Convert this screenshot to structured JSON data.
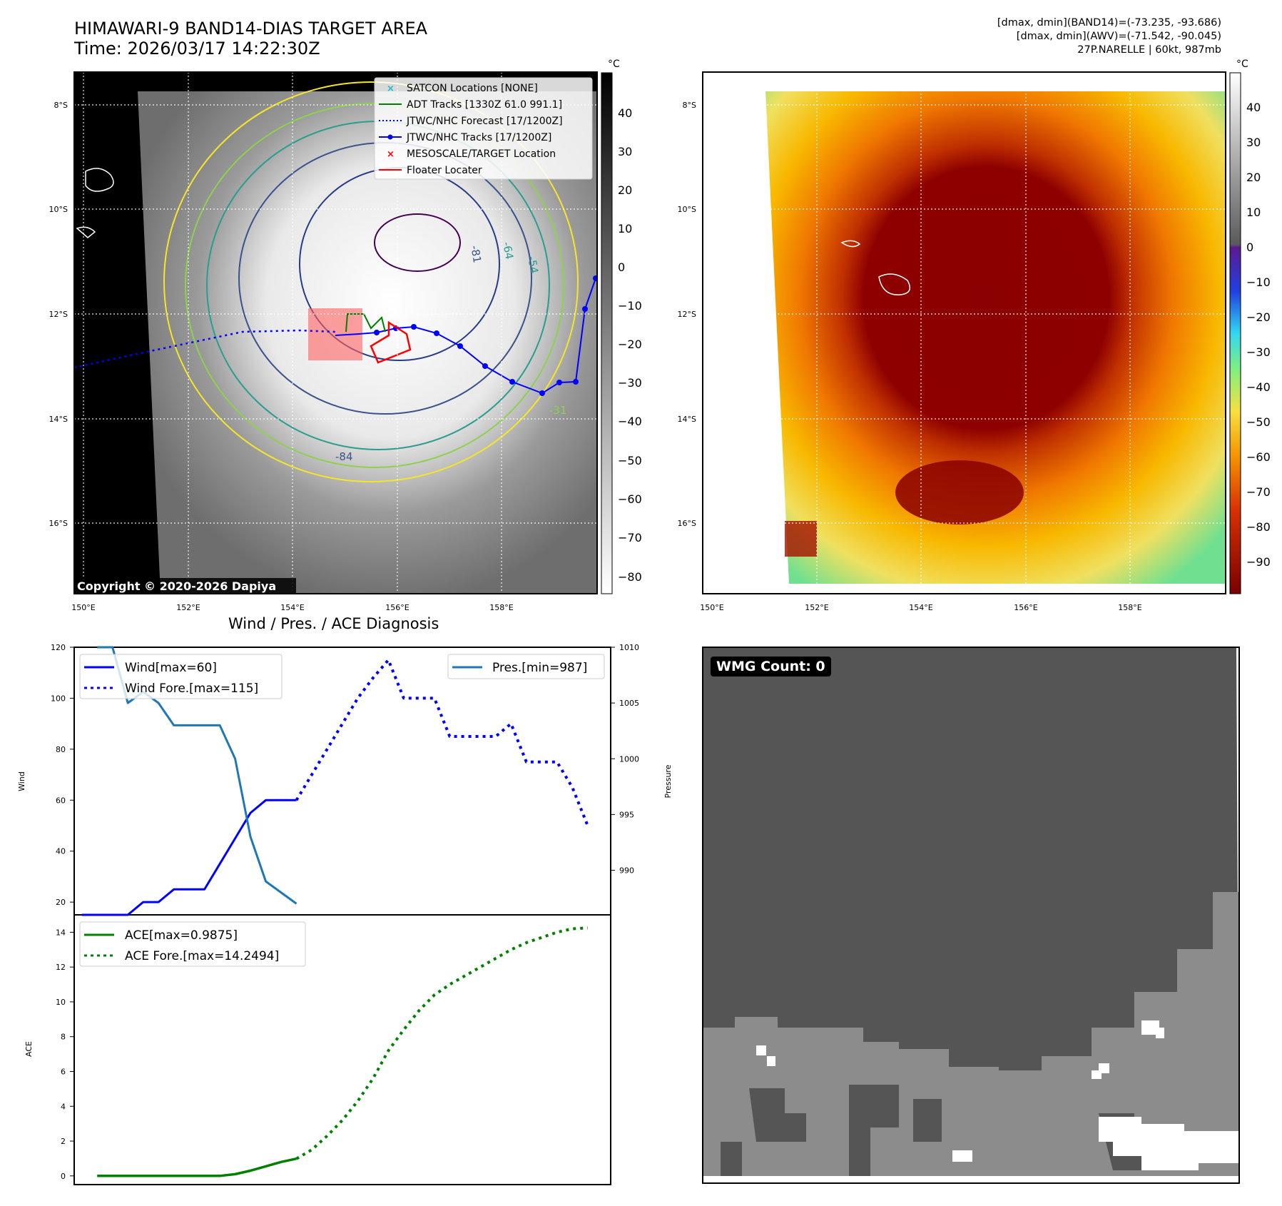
{
  "header": {
    "title_line1": "HIMAWARI-9 BAND14-DIAS TARGET AREA",
    "title_line2": "Time: 2026/03/17 14:22:30Z",
    "info_line1": "[dmax, dmin](BAND14)=(-73.235, -93.686)",
    "info_line2": "[dmax, dmin](AWV)=(-71.542, -90.045)",
    "info_line3": "27P.NARELLE | 60kt, 987mb"
  },
  "map": {
    "lat_labels": [
      "8°S",
      "10°S",
      "12°S",
      "14°S",
      "16°S"
    ],
    "lon_labels": [
      "150°E",
      "152°E",
      "154°E",
      "156°E",
      "158°E"
    ],
    "copyright": "Copyright © 2020-2026 Dapiya",
    "legend": [
      {
        "label": "SATCON Locations [NONE]",
        "color": "#17becf",
        "marker": "x"
      },
      {
        "label": "ADT Tracks [1330Z 61.0 991.1]",
        "color": "#008000",
        "marker": "line"
      },
      {
        "label": "JTWC/NHC Forecast [17/1200Z]",
        "color": "#0000ff",
        "marker": "dotted"
      },
      {
        "label": "JTWC/NHC Tracks [17/1200Z]",
        "color": "#0000ff",
        "marker": "line-dot"
      },
      {
        "label": "MESOSCALE/TARGET Location",
        "color": "#ff0000",
        "marker": "x"
      },
      {
        "label": "Floater Locater",
        "color": "#ff0000",
        "marker": "line"
      }
    ],
    "contour_labels": [
      "-31",
      "-54",
      "-64",
      "-81",
      "-84"
    ],
    "colorbar1": {
      "unit": "°C",
      "ticks": [
        "40",
        "30",
        "20",
        "10",
        "0",
        "−10",
        "−20",
        "−30",
        "−40",
        "−50",
        "−60",
        "−70",
        "−80"
      ]
    },
    "colorbar2": {
      "unit": "°C",
      "ticks": [
        "40",
        "30",
        "20",
        "10",
        "0",
        "−10",
        "−20",
        "−30",
        "−40",
        "−50",
        "−60",
        "−70",
        "−80",
        "−90"
      ]
    }
  },
  "diagnosis": {
    "title": "Wind / Pres. / ACE Diagnosis",
    "wind_ylabel": "Wind",
    "pres_ylabel": "Pressure",
    "ace_ylabel": "ACE",
    "wind_ticks": [
      "20",
      "40",
      "60",
      "80",
      "100",
      "120"
    ],
    "pres_ticks": [
      "990",
      "995",
      "1000",
      "1005",
      "1010"
    ],
    "ace_ticks": [
      "0",
      "2",
      "4",
      "6",
      "8",
      "10",
      "12",
      "14"
    ],
    "legend_wind": "Wind[max=60]",
    "legend_wind_fore": "Wind Fore.[max=115]",
    "legend_pres": "Pres.[min=987]",
    "legend_ace": "ACE[max=0.9875]",
    "legend_ace_fore": "ACE Fore.[max=14.2494]"
  },
  "wmg": {
    "label": "WMG Count: 0"
  },
  "chart_data": [
    {
      "type": "line",
      "title": "Wind / Pres. / ACE Diagnosis",
      "ylabel": "Wind",
      "ylim": [
        15,
        120
      ],
      "x": [
        0,
        1,
        2,
        3,
        4,
        5,
        6,
        7,
        8,
        9,
        10,
        11,
        12,
        13,
        14,
        15,
        16,
        17,
        18,
        19,
        20,
        21,
        22,
        23,
        24,
        25,
        26,
        27,
        28,
        29,
        30,
        31,
        32,
        33
      ],
      "series": [
        {
          "name": "Wind[max=60]",
          "color": "#0000ff",
          "style": "solid",
          "x": [
            0,
            1,
            2,
            3,
            4,
            5,
            6,
            7,
            8,
            9,
            10,
            11,
            12,
            13,
            14
          ],
          "values": [
            15,
            15,
            15,
            15,
            20,
            20,
            25,
            25,
            25,
            35,
            45,
            55,
            60,
            60,
            60
          ]
        },
        {
          "name": "Wind Fore.[max=115]",
          "color": "#0000ff",
          "style": "dotted",
          "x": [
            14,
            15,
            16,
            17,
            18,
            19,
            20,
            21,
            22,
            23,
            24,
            25,
            26,
            27,
            28,
            29,
            30,
            31,
            32,
            33
          ],
          "values": [
            60,
            70,
            80,
            90,
            100,
            108,
            115,
            100,
            100,
            100,
            85,
            85,
            85,
            85,
            90,
            75,
            75,
            75,
            65,
            50
          ]
        }
      ]
    },
    {
      "type": "line",
      "ylabel": "Pressure",
      "ylim": [
        986,
        1010
      ],
      "series": [
        {
          "name": "Pres.[min=987]",
          "color": "#1f77b4",
          "style": "solid",
          "x": [
            1,
            2,
            3,
            4,
            5,
            6,
            7,
            8,
            9,
            10,
            11,
            12,
            13,
            14
          ],
          "values": [
            1010,
            1010,
            1005,
            1006,
            1005,
            1003,
            1003,
            1003,
            1003,
            1000,
            993,
            989,
            988,
            987
          ]
        }
      ]
    },
    {
      "type": "line",
      "ylabel": "ACE",
      "ylim": [
        -0.5,
        15
      ],
      "series": [
        {
          "name": "ACE[max=0.9875]",
          "color": "#008000",
          "style": "solid",
          "x": [
            1,
            2,
            3,
            4,
            5,
            6,
            7,
            8,
            9,
            10,
            11,
            12,
            13,
            14
          ],
          "values": [
            0,
            0,
            0,
            0,
            0,
            0,
            0,
            0,
            0,
            0.1,
            0.3,
            0.55,
            0.8,
            0.9875
          ]
        },
        {
          "name": "ACE Fore.[max=14.2494]",
          "color": "#008000",
          "style": "dotted",
          "x": [
            14,
            15,
            16,
            17,
            18,
            19,
            20,
            21,
            22,
            23,
            24,
            25,
            26,
            27,
            28,
            29,
            30,
            31,
            32,
            33
          ],
          "values": [
            0.9875,
            1.5,
            2.3,
            3.2,
            4.3,
            5.6,
            7.2,
            8.4,
            9.5,
            10.4,
            11.0,
            11.5,
            12.0,
            12.5,
            13.0,
            13.4,
            13.7,
            14.0,
            14.2,
            14.2494
          ]
        }
      ]
    }
  ]
}
